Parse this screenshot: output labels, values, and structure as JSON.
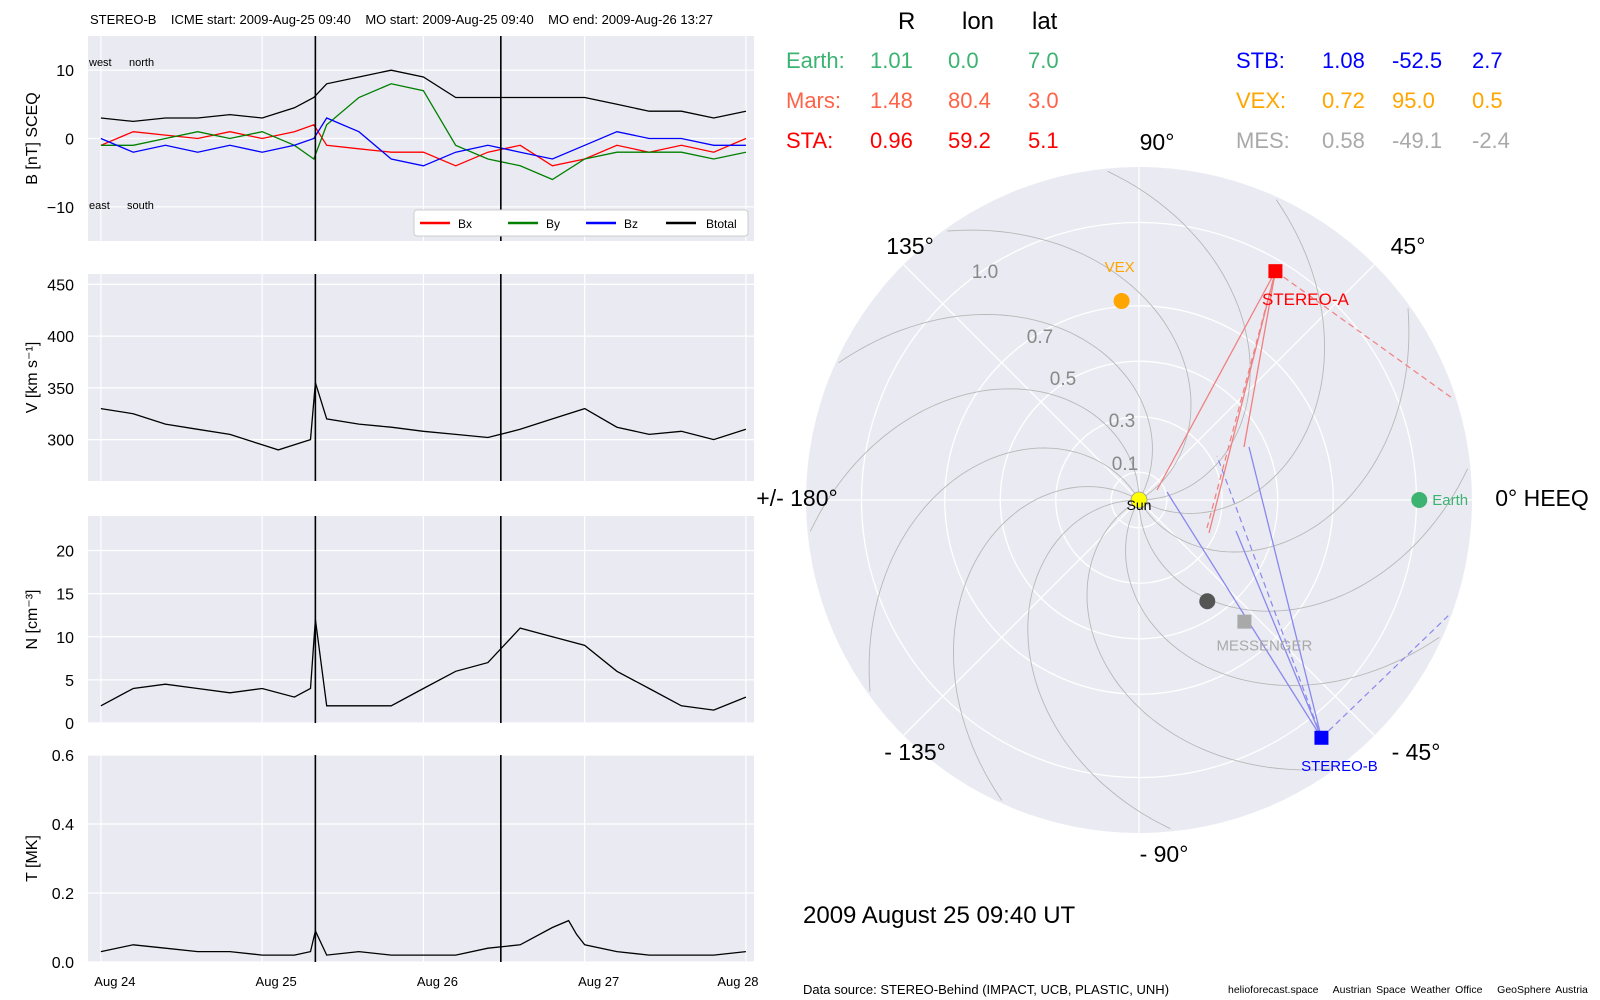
{
  "header": {
    "spacecraft": "STEREO-B",
    "icme_start": "ICME start: 2009-Aug-25 09:40",
    "mo_start": "MO start: 2009-Aug-25 09:40",
    "mo_end": "MO end: 2009-Aug-26 13:27"
  },
  "footer": {
    "date": "2009 August 25  09:40 UT",
    "source": "Data source: STEREO-Behind (IMPACT, UCB, PLASTIC, UNH)",
    "credits": "helioforecast.space   Austrian Space Weather Office   GeoSphere Austria"
  },
  "colors": {
    "Bx": "#ff0000",
    "By": "#008000",
    "Bz": "#0000ff",
    "Btotal": "#000000",
    "plot_bg": "#eaeaf2",
    "earth": "#3cb371",
    "mars": "#ff6347",
    "sta": "#ff0000",
    "stb": "#0000ff",
    "vex": "#ffa500",
    "mes": "#a9a9a9"
  },
  "positions_table": {
    "columns": [
      "R",
      "lon",
      "lat"
    ],
    "rows": [
      {
        "name": "Earth:",
        "R": "1.01",
        "lon": "0.0",
        "lat": "7.0",
        "color": "#3cb371"
      },
      {
        "name": "Mars:",
        "R": "1.48",
        "lon": "80.4",
        "lat": "3.0",
        "color": "#ff6347"
      },
      {
        "name": "STA:",
        "R": "0.96",
        "lon": "59.2",
        "lat": "5.1",
        "color": "#ff0000"
      },
      {
        "name": "STB:",
        "R": "1.08",
        "lon": "-52.5",
        "lat": "2.7",
        "color": "#0000ff"
      },
      {
        "name": "VEX:",
        "R": "0.72",
        "lon": "95.0",
        "lat": "0.5",
        "color": "#ffa500"
      },
      {
        "name": "MES:",
        "R": "0.58",
        "lon": "-49.1",
        "lat": "-2.4",
        "color": "#a9a9a9"
      }
    ]
  },
  "chart_data": [
    {
      "type": "line",
      "panel": "B",
      "ylabel": "B [nT] SCEQ",
      "ylim": [
        -15,
        15
      ],
      "yticks": [
        -10,
        0,
        10
      ],
      "ytick_labels": [
        "−10",
        "0",
        "10"
      ],
      "annotations": [
        "west",
        "north",
        "east",
        "south"
      ],
      "legend": [
        "Bx",
        "By",
        "Bz",
        "Btotal"
      ],
      "legend_loc": "lower-right",
      "series": [
        {
          "name": "Bx",
          "x": [
            0,
            0.2,
            0.4,
            0.6,
            0.8,
            1.0,
            1.2,
            1.32,
            1.4,
            1.6,
            1.8,
            2.0,
            2.2,
            2.4,
            2.6,
            2.8,
            3.0,
            3.2,
            3.4,
            3.6,
            3.8,
            4.0
          ],
          "y": [
            -1,
            1,
            0.5,
            0,
            1,
            0,
            1,
            2,
            -1,
            -1.5,
            -2,
            -2,
            -4,
            -2,
            -1,
            -4,
            -3,
            -1,
            -2,
            -1,
            -2,
            0
          ]
        },
        {
          "name": "By",
          "x": [
            0,
            0.2,
            0.4,
            0.6,
            0.8,
            1.0,
            1.2,
            1.32,
            1.4,
            1.6,
            1.8,
            2.0,
            2.2,
            2.4,
            2.6,
            2.8,
            3.0,
            3.2,
            3.4,
            3.6,
            3.8,
            4.0
          ],
          "y": [
            -1,
            -1,
            0,
            1,
            0,
            1,
            -1,
            -3,
            2,
            6,
            8,
            7,
            -1,
            -3,
            -4,
            -6,
            -3,
            -2,
            -2,
            -2,
            -3,
            -2
          ]
        },
        {
          "name": "Bz",
          "x": [
            0,
            0.2,
            0.4,
            0.6,
            0.8,
            1.0,
            1.2,
            1.32,
            1.4,
            1.6,
            1.8,
            2.0,
            2.2,
            2.4,
            2.6,
            2.8,
            3.0,
            3.2,
            3.4,
            3.6,
            3.8,
            4.0
          ],
          "y": [
            0,
            -2,
            -1,
            -2,
            -1,
            -2,
            -1,
            0,
            3,
            1,
            -3,
            -4,
            -2,
            -1,
            -2,
            -3,
            -1,
            1,
            0,
            0,
            -1,
            -1
          ]
        },
        {
          "name": "Btotal",
          "x": [
            0,
            0.2,
            0.4,
            0.6,
            0.8,
            1.0,
            1.2,
            1.32,
            1.4,
            1.6,
            1.8,
            2.0,
            2.2,
            2.4,
            2.6,
            2.8,
            3.0,
            3.2,
            3.4,
            3.6,
            3.8,
            4.0
          ],
          "y": [
            3,
            2.5,
            3,
            3,
            3.5,
            3,
            4.5,
            6,
            8,
            9,
            10,
            9,
            6,
            6,
            6,
            6,
            6,
            5,
            4,
            4,
            3,
            4
          ]
        }
      ]
    },
    {
      "type": "line",
      "panel": "V",
      "ylabel": "V [km s⁻¹]",
      "ylim": [
        260,
        460
      ],
      "yticks": [
        300,
        350,
        400,
        450
      ],
      "series": [
        {
          "x": [
            0,
            0.2,
            0.4,
            0.6,
            0.8,
            1.0,
            1.1,
            1.2,
            1.3,
            1.33,
            1.4,
            1.6,
            1.8,
            2.0,
            2.2,
            2.4,
            2.6,
            2.8,
            3.0,
            3.2,
            3.4,
            3.6,
            3.8,
            4.0
          ],
          "y": [
            330,
            325,
            315,
            310,
            305,
            295,
            290,
            295,
            300,
            355,
            320,
            315,
            312,
            308,
            305,
            302,
            310,
            320,
            330,
            312,
            305,
            308,
            300,
            310
          ]
        }
      ]
    },
    {
      "type": "line",
      "panel": "N",
      "ylabel": "N [cm⁻³]",
      "ylim": [
        0,
        24
      ],
      "yticks": [
        0,
        5,
        10,
        15,
        20
      ],
      "series": [
        {
          "x": [
            0,
            0.2,
            0.4,
            0.6,
            0.8,
            1.0,
            1.2,
            1.3,
            1.33,
            1.4,
            1.6,
            1.8,
            2.0,
            2.2,
            2.4,
            2.6,
            2.8,
            3.0,
            3.2,
            3.4,
            3.6,
            3.8,
            4.0
          ],
          "y": [
            2,
            4,
            4.5,
            4,
            3.5,
            4,
            3,
            4,
            12,
            2,
            2,
            2,
            4,
            6,
            7,
            11,
            10,
            9,
            6,
            4,
            2,
            1.5,
            3
          ]
        }
      ]
    },
    {
      "type": "line",
      "panel": "T",
      "ylabel": "T [MK]",
      "ylim": [
        0,
        0.6
      ],
      "yticks": [
        0.0,
        0.2,
        0.4,
        0.6
      ],
      "ytick_labels": [
        "0.0",
        "0.2",
        "0.4",
        "0.6"
      ],
      "xticks": [
        "Aug 24",
        "Aug 25",
        "Aug 26",
        "Aug 27",
        "Aug 28"
      ],
      "series": [
        {
          "x": [
            0,
            0.2,
            0.4,
            0.6,
            0.8,
            1.0,
            1.2,
            1.3,
            1.33,
            1.4,
            1.6,
            1.8,
            2.0,
            2.2,
            2.4,
            2.6,
            2.8,
            2.9,
            2.95,
            3.0,
            3.2,
            3.4,
            3.6,
            3.8,
            4.0
          ],
          "y": [
            0.03,
            0.05,
            0.04,
            0.03,
            0.03,
            0.02,
            0.02,
            0.03,
            0.09,
            0.02,
            0.03,
            0.02,
            0.02,
            0.02,
            0.04,
            0.05,
            0.1,
            0.12,
            0.08,
            0.05,
            0.03,
            0.02,
            0.02,
            0.02,
            0.03
          ]
        }
      ]
    },
    {
      "type": "scatter",
      "panel": "polar",
      "coordinate_system": "HEEQ",
      "angle_labels": [
        "90°",
        "45°",
        "0° HEEQ",
        "- 45°",
        "- 90°",
        "- 135°",
        "+/- 180°",
        "135°"
      ],
      "radial_labels": [
        "0.1",
        "0.3",
        "0.5",
        "0.7",
        "1.0"
      ],
      "rmax": 1.2,
      "points": [
        {
          "name": "Sun",
          "r": 0,
          "lon": 0,
          "color": "#ffff00"
        },
        {
          "name": "Earth",
          "r": 1.01,
          "lon": 0.0,
          "color": "#3cb371"
        },
        {
          "name": "STEREO-A",
          "r": 0.96,
          "lon": 59.2,
          "color": "#ff0000"
        },
        {
          "name": "STEREO-B",
          "r": 1.08,
          "lon": -52.5,
          "color": "#0000ff"
        },
        {
          "name": "VEX",
          "r": 0.72,
          "lon": 95.0,
          "color": "#ffa500"
        },
        {
          "name": "MESSENGER",
          "r": 0.58,
          "lon": -49.1,
          "color": "#a9a9a9"
        },
        {
          "name": "",
          "r": 0.44,
          "lon": -56,
          "color": "#555555"
        }
      ]
    }
  ]
}
